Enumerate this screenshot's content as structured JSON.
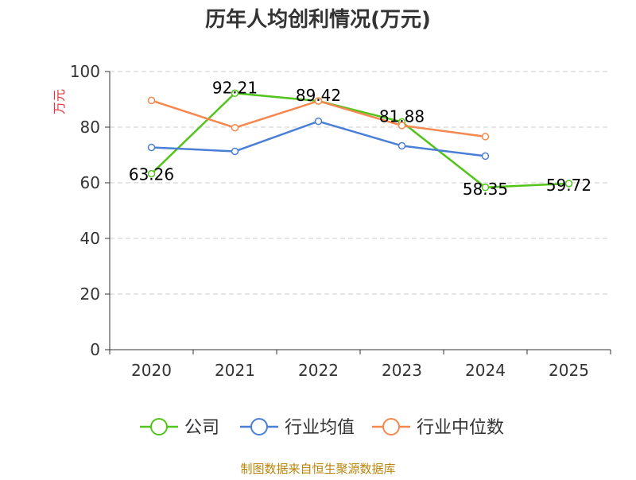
{
  "chart_data": {
    "type": "line",
    "title": "历年人均创利情况(万元)",
    "ylabel": "万元",
    "xlabel": "",
    "categories": [
      "2020",
      "2021",
      "2022",
      "2023",
      "2024",
      "2025"
    ],
    "ylim": [
      0,
      100
    ],
    "yticks": [
      0,
      20,
      40,
      60,
      80,
      100
    ],
    "grid": true,
    "legend_position": "bottom",
    "series": [
      {
        "name": "公司",
        "color": "#52c41a",
        "values": [
          63.26,
          92.21,
          89.42,
          81.88,
          58.35,
          59.72
        ],
        "data_labels": [
          "63.26",
          "92.21",
          "89.42",
          "81.88",
          "58.35",
          "59.72"
        ]
      },
      {
        "name": "行业均值",
        "color": "#4a7fd8",
        "values": [
          72.7,
          71.3,
          82.1,
          73.3,
          69.6,
          null
        ],
        "data_labels": []
      },
      {
        "name": "行业中位数",
        "color": "#f5884e",
        "values": [
          89.6,
          79.8,
          89.4,
          80.6,
          76.6,
          null
        ],
        "data_labels": []
      }
    ]
  },
  "footer": {
    "source": "制图数据来自恒生聚源数据库"
  },
  "colors": {
    "axis": "#333333",
    "grid": "#cccccc",
    "ylabel": "#e8333a",
    "footer": "#b8860b"
  }
}
